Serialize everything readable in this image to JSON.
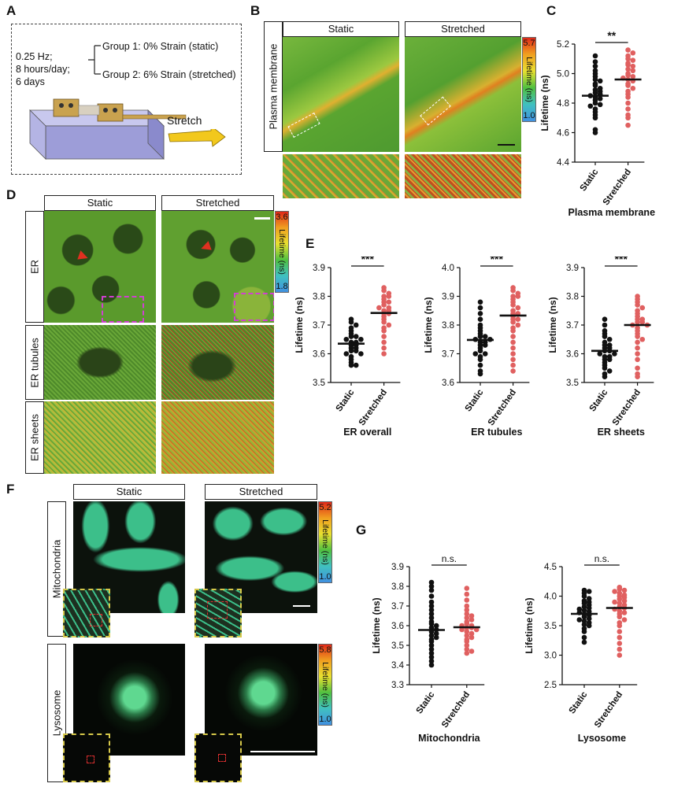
{
  "panels": {
    "a": "A",
    "b": "B",
    "c": "C",
    "d": "D",
    "e": "E",
    "f": "F",
    "g": "G"
  },
  "schematic": {
    "params": [
      "0.25 Hz;",
      "8 hours/day;",
      "6 days"
    ],
    "group1": "Group 1: 0% Strain (static)",
    "group2": "Group 2: 6% Strain (stretched)",
    "arrow_label": "Stretch"
  },
  "conditions": {
    "static": "Static",
    "stretched": "Stretched"
  },
  "row_labels": {
    "plasma_membrane": "Plasma membrane",
    "er": "ER",
    "er_tubules": "ER tubules",
    "er_sheets": "ER sheets",
    "mitochondria": "Mitochondria",
    "lysosome": "Lysosome"
  },
  "colorbars": {
    "label": "Lifetime (ns)",
    "pm": {
      "max": "5.7",
      "min": "1.0"
    },
    "er": {
      "max": "3.6",
      "min": "1.8"
    },
    "mito": {
      "max": "5.2",
      "min": "1.0"
    },
    "lyso": {
      "max": "5.8",
      "min": "1.0"
    }
  },
  "chart_data": [
    {
      "id": "C",
      "type": "scatter",
      "title": "Plasma membrane",
      "ylabel": "Lifetime (ns)",
      "categories": [
        "Static",
        "Stretched"
      ],
      "ylim": [
        4.4,
        5.2
      ],
      "yticks": [
        "4.4",
        "4.6",
        "4.8",
        "5.0",
        "5.2"
      ],
      "significance": "**",
      "series": [
        {
          "color": "#111111",
          "mean": 4.85,
          "values": [
            5.12,
            5.08,
            5.05,
            5.02,
            5.0,
            4.98,
            4.96,
            4.95,
            4.93,
            4.92,
            4.9,
            4.89,
            4.88,
            4.87,
            4.86,
            4.85,
            4.84,
            4.83,
            4.82,
            4.8,
            4.79,
            4.78,
            4.76,
            4.74,
            4.72,
            4.7,
            4.62,
            4.6
          ]
        },
        {
          "color": "#e06060",
          "mean": 4.96,
          "values": [
            5.16,
            5.14,
            5.12,
            5.1,
            5.09,
            5.07,
            5.06,
            5.05,
            5.03,
            5.02,
            5.0,
            4.99,
            4.98,
            4.97,
            4.96,
            4.95,
            4.93,
            4.92,
            4.9,
            4.88,
            4.86,
            4.84,
            4.8,
            4.76,
            4.72,
            4.7,
            4.65
          ]
        }
      ]
    },
    {
      "id": "E1",
      "type": "scatter",
      "title": "ER overall",
      "ylabel": "Lifetime (ns)",
      "categories": [
        "Static",
        "Stretched"
      ],
      "ylim": [
        3.5,
        3.9
      ],
      "yticks": [
        "3.5",
        "3.6",
        "3.7",
        "3.8",
        "3.9"
      ],
      "significance": "***",
      "series": [
        {
          "color": "#111111",
          "mean": 3.635,
          "values": [
            3.72,
            3.71,
            3.7,
            3.69,
            3.68,
            3.67,
            3.66,
            3.66,
            3.65,
            3.65,
            3.64,
            3.64,
            3.63,
            3.63,
            3.62,
            3.62,
            3.61,
            3.61,
            3.6,
            3.6,
            3.59,
            3.58,
            3.57,
            3.56,
            3.56
          ]
        },
        {
          "color": "#e06060",
          "mean": 3.742,
          "values": [
            3.83,
            3.82,
            3.81,
            3.8,
            3.8,
            3.79,
            3.78,
            3.78,
            3.77,
            3.76,
            3.76,
            3.75,
            3.75,
            3.74,
            3.74,
            3.73,
            3.72,
            3.71,
            3.7,
            3.69,
            3.68,
            3.66,
            3.64,
            3.62,
            3.6
          ]
        }
      ]
    },
    {
      "id": "E2",
      "type": "scatter",
      "title": "ER tubules",
      "ylabel": "Lifetime (ns)",
      "categories": [
        "Static",
        "Stretched"
      ],
      "ylim": [
        3.6,
        4.0
      ],
      "yticks": [
        "3.6",
        "3.7",
        "3.8",
        "3.9",
        "4.0"
      ],
      "significance": "***",
      "series": [
        {
          "color": "#111111",
          "mean": 3.748,
          "values": [
            3.88,
            3.86,
            3.84,
            3.82,
            3.8,
            3.79,
            3.78,
            3.77,
            3.76,
            3.76,
            3.75,
            3.75,
            3.74,
            3.74,
            3.73,
            3.73,
            3.72,
            3.71,
            3.7,
            3.7,
            3.69,
            3.68,
            3.66,
            3.64,
            3.63
          ]
        },
        {
          "color": "#e06060",
          "mean": 3.833,
          "values": [
            3.93,
            3.92,
            3.91,
            3.9,
            3.9,
            3.89,
            3.88,
            3.87,
            3.86,
            3.85,
            3.84,
            3.84,
            3.83,
            3.82,
            3.82,
            3.81,
            3.8,
            3.79,
            3.78,
            3.76,
            3.74,
            3.72,
            3.7,
            3.68,
            3.66,
            3.64
          ]
        }
      ]
    },
    {
      "id": "E3",
      "type": "scatter",
      "title": "ER sheets",
      "ylabel": "Lifetime (ns)",
      "categories": [
        "Static",
        "Stretched"
      ],
      "ylim": [
        3.5,
        3.9
      ],
      "yticks": [
        "3.5",
        "3.6",
        "3.7",
        "3.8",
        "3.9"
      ],
      "significance": "***",
      "series": [
        {
          "color": "#111111",
          "mean": 3.61,
          "values": [
            3.72,
            3.7,
            3.68,
            3.67,
            3.66,
            3.65,
            3.64,
            3.63,
            3.63,
            3.62,
            3.62,
            3.61,
            3.61,
            3.6,
            3.6,
            3.59,
            3.59,
            3.58,
            3.58,
            3.57,
            3.56,
            3.55,
            3.54,
            3.53,
            3.52
          ]
        },
        {
          "color": "#e06060",
          "mean": 3.7,
          "values": [
            3.8,
            3.79,
            3.78,
            3.77,
            3.76,
            3.75,
            3.74,
            3.73,
            3.72,
            3.72,
            3.71,
            3.71,
            3.7,
            3.7,
            3.69,
            3.68,
            3.67,
            3.66,
            3.65,
            3.64,
            3.62,
            3.6,
            3.58,
            3.55,
            3.53,
            3.52
          ]
        }
      ]
    },
    {
      "id": "G1",
      "type": "scatter",
      "title": "Mitochondria",
      "ylabel": "Lifetime (ns)",
      "categories": [
        "Static",
        "Stretched"
      ],
      "ylim": [
        3.3,
        3.9
      ],
      "yticks": [
        "3.3",
        "3.4",
        "3.5",
        "3.6",
        "3.7",
        "3.8",
        "3.9"
      ],
      "significance": "n.s.",
      "series": [
        {
          "color": "#111111",
          "mean": 3.578,
          "values": [
            3.82,
            3.8,
            3.78,
            3.75,
            3.72,
            3.7,
            3.68,
            3.66,
            3.64,
            3.62,
            3.61,
            3.6,
            3.59,
            3.58,
            3.57,
            3.56,
            3.55,
            3.54,
            3.53,
            3.52,
            3.5,
            3.48,
            3.46,
            3.44,
            3.42,
            3.4
          ]
        },
        {
          "color": "#e06060",
          "mean": 3.592,
          "values": [
            3.79,
            3.76,
            3.73,
            3.7,
            3.68,
            3.66,
            3.65,
            3.64,
            3.63,
            3.62,
            3.61,
            3.6,
            3.6,
            3.59,
            3.59,
            3.58,
            3.58,
            3.57,
            3.56,
            3.55,
            3.54,
            3.53,
            3.52,
            3.5,
            3.48,
            3.47,
            3.46
          ]
        }
      ]
    },
    {
      "id": "G2",
      "type": "scatter",
      "title": "Lysosome",
      "ylabel": "Lifetime (ns)",
      "categories": [
        "Static",
        "Stretched"
      ],
      "ylim": [
        2.5,
        4.5
      ],
      "yticks": [
        "2.5",
        "3.0",
        "3.5",
        "4.0",
        "4.5"
      ],
      "significance": "n.s.",
      "series": [
        {
          "color": "#111111",
          "mean": 3.7,
          "values": [
            4.1,
            4.08,
            4.05,
            4.0,
            3.96,
            3.92,
            3.9,
            3.88,
            3.85,
            3.82,
            3.8,
            3.78,
            3.76,
            3.74,
            3.72,
            3.7,
            3.68,
            3.65,
            3.62,
            3.6,
            3.58,
            3.55,
            3.52,
            3.5,
            3.45,
            3.4,
            3.3,
            3.22
          ]
        },
        {
          "color": "#e06060",
          "mean": 3.8,
          "values": [
            4.15,
            4.12,
            4.1,
            4.08,
            4.05,
            4.02,
            4.0,
            3.98,
            3.95,
            3.92,
            3.9,
            3.88,
            3.85,
            3.82,
            3.8,
            3.78,
            3.75,
            3.72,
            3.7,
            3.65,
            3.6,
            3.55,
            3.5,
            3.4,
            3.3,
            3.2,
            3.1,
            3.0
          ]
        }
      ]
    }
  ]
}
